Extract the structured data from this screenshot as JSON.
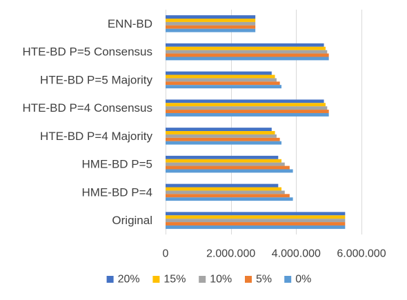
{
  "chart_data": {
    "type": "bar",
    "orientation": "horizontal",
    "categories": [
      "ENN-BD",
      "HTE-BD P=5 Consensus",
      "HTE-BD P=5 Majority",
      "HTE-BD P=4 Consensus",
      "HTE-BD P=4 Majority",
      "HME-BD P=5",
      "HME-BD P=4",
      "Original"
    ],
    "series": [
      {
        "name": "20%",
        "color": "#4472C4",
        "values": [
          2750000,
          4850000,
          3250000,
          4850000,
          3250000,
          3450000,
          3450000,
          5500000
        ]
      },
      {
        "name": "15%",
        "color": "#FFC000",
        "values": [
          2750000,
          4900000,
          3350000,
          4900000,
          3350000,
          3550000,
          3550000,
          5500000
        ]
      },
      {
        "name": "10%",
        "color": "#A5A5A5",
        "values": [
          2750000,
          4950000,
          3400000,
          4950000,
          3400000,
          3650000,
          3650000,
          5500000
        ]
      },
      {
        "name": "5%",
        "color": "#ED7D31",
        "values": [
          2750000,
          5000000,
          3500000,
          5000000,
          3500000,
          3800000,
          3800000,
          5500000
        ]
      },
      {
        "name": "0%",
        "color": "#5B9BD5",
        "values": [
          2750000,
          5000000,
          3550000,
          5000000,
          3550000,
          3900000,
          3900000,
          5500000
        ]
      }
    ],
    "x_ticks": [
      "0",
      "2.000.000",
      "4.000.000",
      "6.000.000"
    ],
    "xlim": [
      0,
      6000000
    ],
    "title": "",
    "xlabel": "",
    "ylabel": "",
    "grid": "vertical",
    "legend_position": "bottom"
  }
}
